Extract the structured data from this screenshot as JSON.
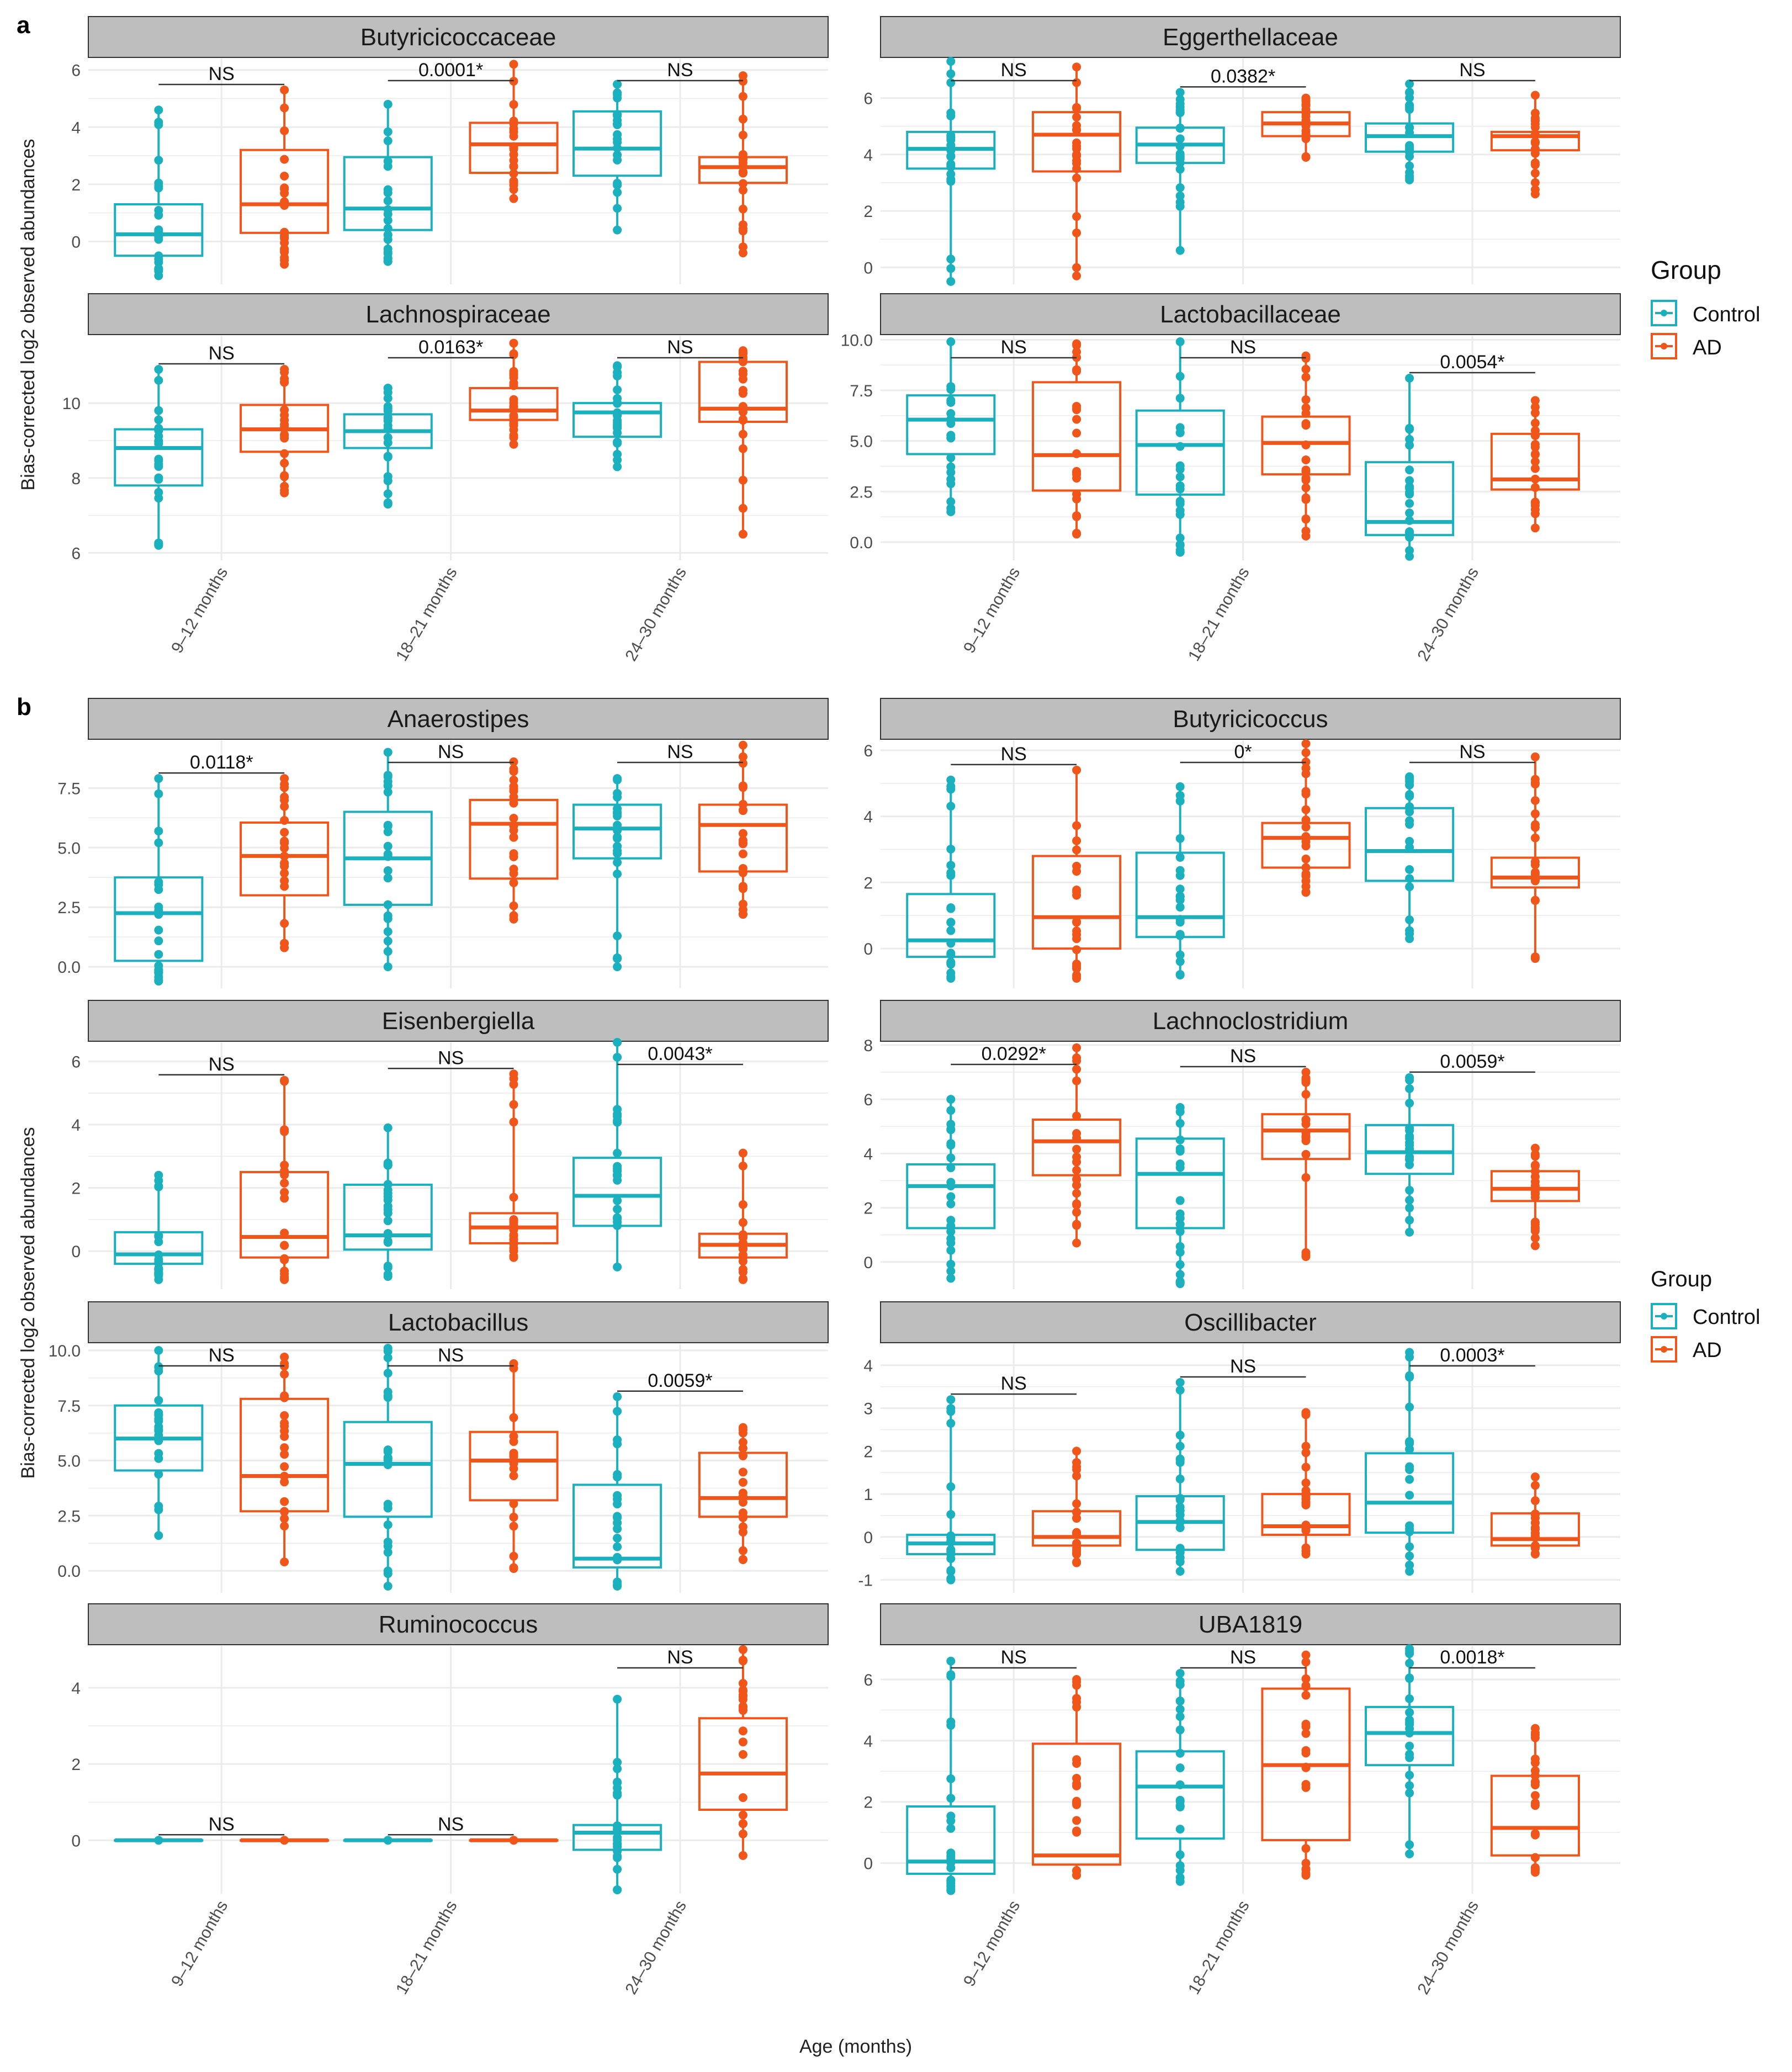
{
  "figure": {
    "panel_labels": [
      "a",
      "b"
    ],
    "y_axis_label": "Bias-corrected log2 observed abundances",
    "x_axis_label": "Age (months)",
    "legend": {
      "title": "Group",
      "entries": [
        {
          "label": "Control",
          "color": "#1BB0BE"
        },
        {
          "label": "AD",
          "color": "#F0561A"
        }
      ]
    },
    "colors": {
      "control": "#1BB0BE",
      "ad": "#F0561A",
      "strip_fill": "#BEBEBE",
      "grid": "#EBEBEB"
    },
    "age_groups": [
      "9–12 months",
      "18–21 months",
      "24–30 months"
    ]
  },
  "chart_data": [
    {
      "type": "box",
      "title": "Butyricicoccaceae",
      "ylim": [
        -1.5,
        6.4
      ],
      "ticks": [
        0,
        2,
        4,
        6
      ],
      "tick_labels": [
        "0",
        "2",
        "4",
        "6"
      ],
      "annotations": [
        "NS",
        "0.0001*",
        "NS"
      ],
      "control": [
        {
          "q1": -0.5,
          "median": 0.25,
          "q3": 1.3,
          "min": -1.2,
          "max": 4.6
        },
        {
          "q1": 0.4,
          "median": 1.15,
          "q3": 2.95,
          "min": -0.7,
          "max": 4.8
        },
        {
          "q1": 2.3,
          "median": 3.25,
          "q3": 4.55,
          "min": 0.4,
          "max": 5.5
        }
      ],
      "ad": [
        {
          "q1": 0.3,
          "median": 1.3,
          "q3": 3.2,
          "min": -0.8,
          "max": 5.3
        },
        {
          "q1": 2.4,
          "median": 3.4,
          "q3": 4.15,
          "min": 1.5,
          "max": 6.2
        },
        {
          "q1": 2.05,
          "median": 2.6,
          "q3": 2.95,
          "min": -0.4,
          "max": 5.8
        }
      ]
    },
    {
      "type": "box",
      "title": "Eggerthellaceae",
      "ylim": [
        -0.6,
        7.4
      ],
      "ticks": [
        0,
        2,
        4,
        6
      ],
      "tick_labels": [
        "0",
        "2",
        "4",
        "6"
      ],
      "annotations": [
        "NS",
        "0.0382*",
        "NS"
      ],
      "control": [
        {
          "q1": 3.5,
          "median": 4.2,
          "q3": 4.8,
          "min": -0.5,
          "max": 7.3
        },
        {
          "q1": 3.7,
          "median": 4.35,
          "q3": 4.95,
          "min": 0.6,
          "max": 6.2
        },
        {
          "q1": 4.1,
          "median": 4.65,
          "q3": 5.1,
          "min": 3.1,
          "max": 6.5
        }
      ],
      "ad": [
        {
          "q1": 3.4,
          "median": 4.7,
          "q3": 5.5,
          "min": -0.3,
          "max": 7.1
        },
        {
          "q1": 4.65,
          "median": 5.1,
          "q3": 5.5,
          "min": 3.9,
          "max": 6.0
        },
        {
          "q1": 4.15,
          "median": 4.65,
          "q3": 4.8,
          "min": 2.6,
          "max": 6.1
        }
      ]
    },
    {
      "type": "box",
      "title": "Lachnospiraceae",
      "ylim": [
        5.8,
        11.8
      ],
      "ticks": [
        6,
        8,
        10
      ],
      "tick_labels": [
        "6",
        "8",
        "10"
      ],
      "annotations": [
        "NS",
        "0.0163*",
        "NS"
      ],
      "control": [
        {
          "q1": 7.8,
          "median": 8.8,
          "q3": 9.3,
          "min": 6.2,
          "max": 10.9
        },
        {
          "q1": 8.8,
          "median": 9.25,
          "q3": 9.7,
          "min": 7.3,
          "max": 10.4
        },
        {
          "q1": 9.1,
          "median": 9.75,
          "q3": 10.0,
          "min": 8.3,
          "max": 11.0
        }
      ],
      "ad": [
        {
          "q1": 8.7,
          "median": 9.3,
          "q3": 9.95,
          "min": 7.6,
          "max": 10.9
        },
        {
          "q1": 9.55,
          "median": 9.8,
          "q3": 10.4,
          "min": 8.9,
          "max": 11.6
        },
        {
          "q1": 9.5,
          "median": 9.85,
          "q3": 11.1,
          "min": 6.5,
          "max": 11.4
        }
      ]
    },
    {
      "type": "box",
      "title": "Lactobacillaceae",
      "ylim": [
        -0.9,
        10.2
      ],
      "ticks": [
        0,
        2.5,
        5,
        7.5,
        10
      ],
      "tick_labels": [
        "0.0",
        "2.5",
        "5.0",
        "7.5",
        "10.0"
      ],
      "annotations": [
        "NS",
        "NS",
        "0.0054*"
      ],
      "control": [
        {
          "q1": 4.35,
          "median": 6.05,
          "q3": 7.25,
          "min": 1.5,
          "max": 9.9
        },
        {
          "q1": 2.35,
          "median": 4.8,
          "q3": 6.5,
          "min": -0.5,
          "max": 9.9
        },
        {
          "q1": 0.35,
          "median": 1.0,
          "q3": 3.95,
          "min": -0.7,
          "max": 8.1
        }
      ],
      "ad": [
        {
          "q1": 2.55,
          "median": 4.3,
          "q3": 7.9,
          "min": 0.4,
          "max": 9.8
        },
        {
          "q1": 3.35,
          "median": 4.9,
          "q3": 6.2,
          "min": 0.3,
          "max": 9.2
        },
        {
          "q1": 2.6,
          "median": 3.1,
          "q3": 5.35,
          "min": 0.7,
          "max": 7.0
        }
      ]
    },
    {
      "type": "box",
      "title": "Anaerostipes",
      "ylim": [
        -0.9,
        9.5
      ],
      "ticks": [
        0,
        2.5,
        5,
        7.5
      ],
      "tick_labels": [
        "0.0",
        "2.5",
        "5.0",
        "7.5"
      ],
      "annotations": [
        "0.0118*",
        "NS",
        "NS"
      ],
      "control": [
        {
          "q1": 0.25,
          "median": 2.25,
          "q3": 3.75,
          "min": -0.6,
          "max": 7.9
        },
        {
          "q1": 2.6,
          "median": 4.55,
          "q3": 6.5,
          "min": 0.0,
          "max": 9.0
        },
        {
          "q1": 4.55,
          "median": 5.8,
          "q3": 6.8,
          "min": 0.0,
          "max": 7.9
        }
      ],
      "ad": [
        {
          "q1": 3.0,
          "median": 4.65,
          "q3": 6.05,
          "min": 0.8,
          "max": 7.9
        },
        {
          "q1": 3.7,
          "median": 6.0,
          "q3": 7.0,
          "min": 2.0,
          "max": 8.6
        },
        {
          "q1": 4.0,
          "median": 5.95,
          "q3": 6.8,
          "min": 2.2,
          "max": 9.3
        }
      ]
    },
    {
      "type": "box",
      "title": "Butyricicoccus",
      "ylim": [
        -1.2,
        6.3
      ],
      "ticks": [
        0,
        2,
        4,
        6
      ],
      "tick_labels": [
        "0",
        "2",
        "4",
        "6"
      ],
      "annotations": [
        "NS",
        "0*",
        "NS"
      ],
      "control": [
        {
          "q1": -0.25,
          "median": 0.25,
          "q3": 1.65,
          "min": -0.9,
          "max": 5.1
        },
        {
          "q1": 0.35,
          "median": 0.95,
          "q3": 2.9,
          "min": -0.8,
          "max": 4.9
        },
        {
          "q1": 2.05,
          "median": 2.95,
          "q3": 4.25,
          "min": 0.3,
          "max": 5.2
        }
      ],
      "ad": [
        {
          "q1": 0.0,
          "median": 0.95,
          "q3": 2.8,
          "min": -0.9,
          "max": 5.4
        },
        {
          "q1": 2.45,
          "median": 3.35,
          "q3": 3.8,
          "min": 1.7,
          "max": 6.2
        },
        {
          "q1": 1.85,
          "median": 2.15,
          "q3": 2.75,
          "min": -0.3,
          "max": 5.8
        }
      ]
    },
    {
      "type": "box",
      "title": "Eisenbergiella",
      "ylim": [
        -1.2,
        6.6
      ],
      "ticks": [
        0,
        2,
        4,
        6
      ],
      "tick_labels": [
        "0",
        "2",
        "4",
        "6"
      ],
      "annotations": [
        "NS",
        "NS",
        "0.0043*"
      ],
      "control": [
        {
          "q1": -0.4,
          "median": -0.1,
          "q3": 0.6,
          "min": -0.9,
          "max": 2.4
        },
        {
          "q1": 0.05,
          "median": 0.5,
          "q3": 2.1,
          "min": -0.8,
          "max": 3.9
        },
        {
          "q1": 0.8,
          "median": 1.75,
          "q3": 2.95,
          "min": -0.5,
          "max": 6.6
        }
      ],
      "ad": [
        {
          "q1": -0.2,
          "median": 0.45,
          "q3": 2.5,
          "min": -0.9,
          "max": 5.4
        },
        {
          "q1": 0.25,
          "median": 0.75,
          "q3": 1.2,
          "min": -0.2,
          "max": 5.6
        },
        {
          "q1": -0.2,
          "median": 0.2,
          "q3": 0.55,
          "min": -0.9,
          "max": 3.1
        }
      ]
    },
    {
      "type": "box",
      "title": "Lachnoclostridium",
      "ylim": [
        -1.0,
        8.1
      ],
      "ticks": [
        0,
        2,
        4,
        6,
        8
      ],
      "tick_labels": [
        "0",
        "2",
        "4",
        "6",
        "8"
      ],
      "annotations": [
        "0.0292*",
        "NS",
        "0.0059*"
      ],
      "control": [
        {
          "q1": 1.25,
          "median": 2.8,
          "q3": 3.6,
          "min": -0.6,
          "max": 6.0
        },
        {
          "q1": 1.25,
          "median": 3.25,
          "q3": 4.55,
          "min": -0.8,
          "max": 5.7
        },
        {
          "q1": 3.25,
          "median": 4.05,
          "q3": 5.05,
          "min": 1.1,
          "max": 6.8
        }
      ],
      "ad": [
        {
          "q1": 3.2,
          "median": 4.45,
          "q3": 5.25,
          "min": 0.7,
          "max": 7.9
        },
        {
          "q1": 3.8,
          "median": 4.85,
          "q3": 5.45,
          "min": 0.2,
          "max": 7.0
        },
        {
          "q1": 2.25,
          "median": 2.7,
          "q3": 3.35,
          "min": 0.6,
          "max": 4.2
        }
      ]
    },
    {
      "type": "box",
      "title": "Lactobacillus",
      "ylim": [
        -1.0,
        10.3
      ],
      "ticks": [
        0,
        2.5,
        5,
        7.5,
        10
      ],
      "tick_labels": [
        "0.0",
        "2.5",
        "5.0",
        "7.5",
        "10.0"
      ],
      "annotations": [
        "NS",
        "NS",
        "0.0059*"
      ],
      "control": [
        {
          "q1": 4.55,
          "median": 6.0,
          "q3": 7.5,
          "min": 1.6,
          "max": 10.0
        },
        {
          "q1": 2.45,
          "median": 4.85,
          "q3": 6.75,
          "min": -0.7,
          "max": 10.1
        },
        {
          "q1": 0.15,
          "median": 0.55,
          "q3": 3.9,
          "min": -0.7,
          "max": 7.9
        }
      ],
      "ad": [
        {
          "q1": 2.7,
          "median": 4.3,
          "q3": 7.8,
          "min": 0.4,
          "max": 9.7
        },
        {
          "q1": 3.2,
          "median": 5.0,
          "q3": 6.3,
          "min": 0.1,
          "max": 9.4
        },
        {
          "q1": 2.45,
          "median": 3.3,
          "q3": 5.35,
          "min": 0.5,
          "max": 6.5
        }
      ]
    },
    {
      "type": "box",
      "title": "Oscillibacter",
      "ylim": [
        -1.3,
        4.5
      ],
      "ticks": [
        -1,
        0,
        1,
        2,
        3,
        4
      ],
      "tick_labels": [
        "-1",
        "0",
        "1",
        "2",
        "3",
        "4"
      ],
      "annotations": [
        "NS",
        "NS",
        "0.0003*"
      ],
      "control": [
        {
          "q1": -0.4,
          "median": -0.15,
          "q3": 0.05,
          "min": -1.0,
          "max": 3.2
        },
        {
          "q1": -0.3,
          "median": 0.35,
          "q3": 0.95,
          "min": -0.8,
          "max": 3.6
        },
        {
          "q1": 0.1,
          "median": 0.8,
          "q3": 1.95,
          "min": -0.8,
          "max": 4.3
        }
      ],
      "ad": [
        {
          "q1": -0.2,
          "median": 0.0,
          "q3": 0.6,
          "min": -0.6,
          "max": 2.0
        },
        {
          "q1": 0.05,
          "median": 0.25,
          "q3": 1.0,
          "min": -0.4,
          "max": 2.9
        },
        {
          "q1": -0.2,
          "median": -0.05,
          "q3": 0.55,
          "min": -0.4,
          "max": 1.4
        }
      ]
    },
    {
      "type": "box",
      "title": "Ruminococcus",
      "ylim": [
        -1.4,
        5.1
      ],
      "ticks": [
        0,
        2,
        4
      ],
      "tick_labels": [
        "0",
        "2",
        "4"
      ],
      "annotations": [
        "NS",
        "NS",
        "NS"
      ],
      "control": [
        {
          "q1": 0.0,
          "median": 0.0,
          "q3": 0.0,
          "min": 0.0,
          "max": 0.0
        },
        {
          "q1": 0.0,
          "median": 0.0,
          "q3": 0.0,
          "min": 0.0,
          "max": 0.0
        },
        {
          "q1": -0.25,
          "median": 0.2,
          "q3": 0.4,
          "min": -1.3,
          "max": 3.7
        }
      ],
      "ad": [
        {
          "q1": 0.0,
          "median": 0.0,
          "q3": 0.0,
          "min": 0.0,
          "max": 0.0
        },
        {
          "q1": 0.0,
          "median": 0.0,
          "q3": 0.0,
          "min": 0.0,
          "max": 0.0
        },
        {
          "q1": 0.8,
          "median": 1.75,
          "q3": 3.2,
          "min": -0.4,
          "max": 5.0
        }
      ]
    },
    {
      "type": "box",
      "title": "UBA1819",
      "ylim": [
        -1.0,
        7.1
      ],
      "ticks": [
        0,
        2,
        4,
        6
      ],
      "tick_labels": [
        "0",
        "2",
        "4",
        "6"
      ],
      "annotations": [
        "NS",
        "NS",
        "0.0018*"
      ],
      "control": [
        {
          "q1": -0.35,
          "median": 0.05,
          "q3": 1.85,
          "min": -0.9,
          "max": 6.6
        },
        {
          "q1": 0.8,
          "median": 2.5,
          "q3": 3.65,
          "min": -0.6,
          "max": 6.2
        },
        {
          "q1": 3.2,
          "median": 4.25,
          "q3": 5.1,
          "min": 0.3,
          "max": 7.0
        }
      ],
      "ad": [
        {
          "q1": -0.05,
          "median": 0.25,
          "q3": 3.9,
          "min": -0.4,
          "max": 6.0
        },
        {
          "q1": 0.75,
          "median": 3.2,
          "q3": 5.7,
          "min": -0.4,
          "max": 6.8
        },
        {
          "q1": 0.25,
          "median": 1.15,
          "q3": 2.85,
          "min": -0.3,
          "max": 4.4
        }
      ]
    }
  ]
}
